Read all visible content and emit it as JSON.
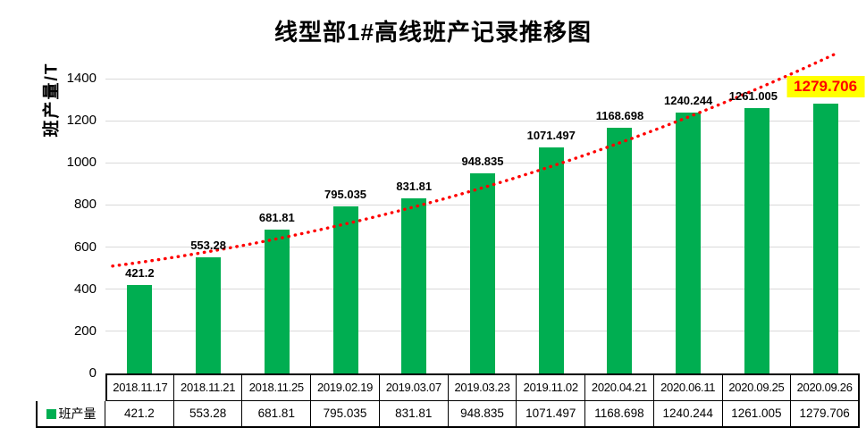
{
  "chart_data": {
    "type": "bar",
    "title": "线型部1#高线班产记录推移图",
    "xlabel": "",
    "ylabel": "班产量/T",
    "categories": [
      "2018.11.17",
      "2018.11.21",
      "2018.11.25",
      "2019.02.19",
      "2019.03.07",
      "2019.03.23",
      "2019.11.02",
      "2020.04.21",
      "2020.06.11",
      "2020.09.25",
      "2020.09.26"
    ],
    "values": [
      421.2,
      553.28,
      681.81,
      795.035,
      831.81,
      948.835,
      1071.497,
      1168.698,
      1240.244,
      1261.005,
      1279.706
    ],
    "ylim": [
      0,
      1500
    ],
    "yticks": [
      0,
      200,
      400,
      600,
      800,
      1000,
      1200,
      1400
    ],
    "grid": true,
    "legend": [
      "班产量"
    ],
    "legend_position": "bottom-left-table",
    "data_labels": true,
    "trendline": "dotted exponential trend over bars",
    "highlight_last_label": true
  },
  "legend_label": "班产量",
  "colors": {
    "bar": "#00AE51",
    "trendline": "#FF0000",
    "gridline": "#D9D9D9",
    "highlight_bg": "#FFFF00",
    "highlight_text": "#FF0000",
    "label_text": "#000000",
    "table_border": "#000000"
  }
}
